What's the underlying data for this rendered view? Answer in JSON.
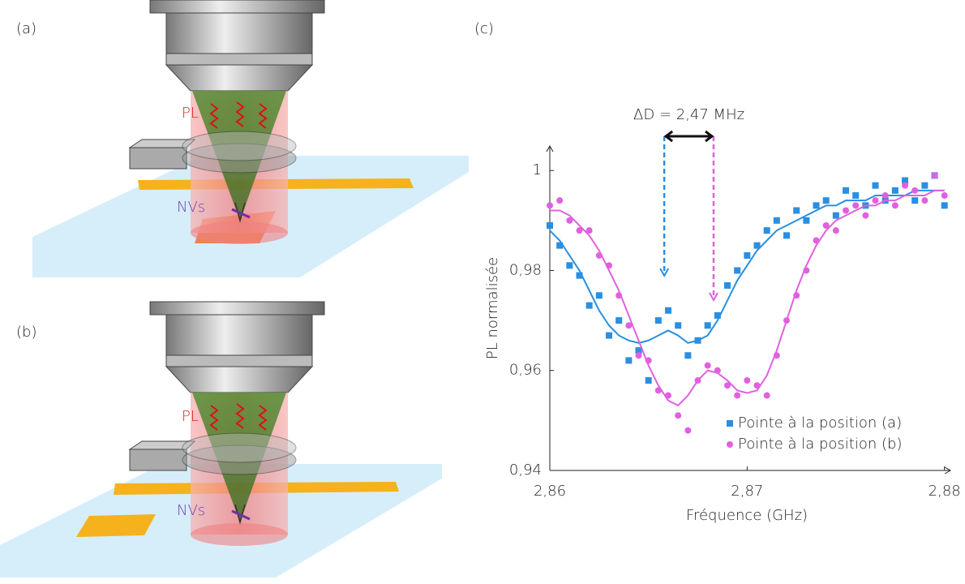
{
  "illustrations": {
    "a": {
      "label": "(a)",
      "pl": "PL",
      "nv": "NVs"
    },
    "b": {
      "label": "(b)",
      "pl": "PL",
      "nv": "NVs"
    }
  },
  "chart_data": {
    "type": "scatter",
    "label": "(c)",
    "xlabel": "Fréquence (GHz)",
    "ylabel": "PL normalisée",
    "annotation": {
      "text": "ΔD = 2,47 MHz",
      "x": [
        2.8658,
        2.8683
      ]
    },
    "xlim": [
      2.86,
      2.8803
    ],
    "ylim": [
      0.94,
      1.0049
    ],
    "xticks": [
      {
        "value": 2.86,
        "label": "2,86"
      },
      {
        "value": 2.87,
        "label": "2,87"
      },
      {
        "value": 2.88,
        "label": "2,88"
      }
    ],
    "yticks": [
      {
        "value": 0.94,
        "label": "0,94"
      },
      {
        "value": 0.96,
        "label": "0,96"
      },
      {
        "value": 0.98,
        "label": "0,98"
      },
      1
    ],
    "legend": "lower right",
    "x": [
      2.86,
      2.8605,
      2.861,
      2.8615,
      2.862,
      2.8625,
      2.863,
      2.8635,
      2.864,
      2.8645,
      2.865,
      2.8655,
      2.866,
      2.8665,
      2.867,
      2.8675,
      2.868,
      2.8685,
      2.869,
      2.8695,
      2.87,
      2.8705,
      2.871,
      2.8715,
      2.872,
      2.8725,
      2.873,
      2.8735,
      2.874,
      2.8745,
      2.875,
      2.8755,
      2.876,
      2.8765,
      2.877,
      2.8775,
      2.878,
      2.8785,
      2.879,
      2.8795,
      2.88
    ],
    "series": [
      {
        "name": "Pointe à la position (a)",
        "color": "#2a8fe0",
        "marker": "square",
        "values": [
          0.989,
          0.985,
          0.981,
          0.979,
          0.973,
          0.975,
          0.967,
          0.97,
          0.962,
          0.964,
          0.958,
          0.97,
          0.972,
          0.969,
          0.963,
          0.966,
          0.969,
          0.971,
          0.977,
          0.98,
          0.983,
          0.985,
          0.988,
          0.99,
          0.987,
          0.992,
          0.99,
          0.993,
          0.994,
          0.991,
          0.996,
          0.995,
          0.993,
          0.997,
          0.994,
          0.996,
          0.998,
          0.994,
          0.997,
          0.999,
          0.993
        ],
        "fit": [
          0.988,
          0.986,
          0.983,
          0.98,
          0.976,
          0.972,
          0.969,
          0.967,
          0.966,
          0.9655,
          0.966,
          0.967,
          0.968,
          0.967,
          0.9655,
          0.966,
          0.967,
          0.97,
          0.974,
          0.978,
          0.981,
          0.984,
          0.986,
          0.988,
          0.989,
          0.99,
          0.991,
          0.992,
          0.993,
          0.993,
          0.994,
          0.994,
          0.994,
          0.995,
          0.995,
          0.995,
          0.995,
          0.996,
          0.996,
          0.996,
          0.996
        ]
      },
      {
        "name": "Pointe à la position (b)",
        "color": "#e060e0",
        "marker": "circle",
        "values": [
          0.993,
          0.994,
          0.99,
          0.988,
          0.988,
          0.983,
          0.981,
          0.975,
          0.969,
          0.963,
          0.962,
          0.956,
          0.955,
          0.951,
          0.948,
          0.958,
          0.961,
          0.96,
          0.957,
          0.955,
          0.958,
          0.957,
          0.955,
          0.963,
          0.97,
          0.975,
          0.98,
          0.986,
          0.989,
          0.988,
          0.992,
          0.993,
          0.991,
          0.994,
          0.995,
          0.993,
          0.997,
          0.996,
          0.994,
          0.999,
          0.995
        ],
        "fit": [
          0.992,
          0.992,
          0.991,
          0.989,
          0.987,
          0.984,
          0.98,
          0.976,
          0.971,
          0.966,
          0.961,
          0.957,
          0.954,
          0.953,
          0.955,
          0.958,
          0.96,
          0.9595,
          0.958,
          0.956,
          0.9555,
          0.956,
          0.959,
          0.964,
          0.97,
          0.976,
          0.981,
          0.985,
          0.988,
          0.99,
          0.991,
          0.992,
          0.993,
          0.993,
          0.994,
          0.994,
          0.995,
          0.995,
          0.995,
          0.996,
          0.996
        ]
      }
    ]
  }
}
